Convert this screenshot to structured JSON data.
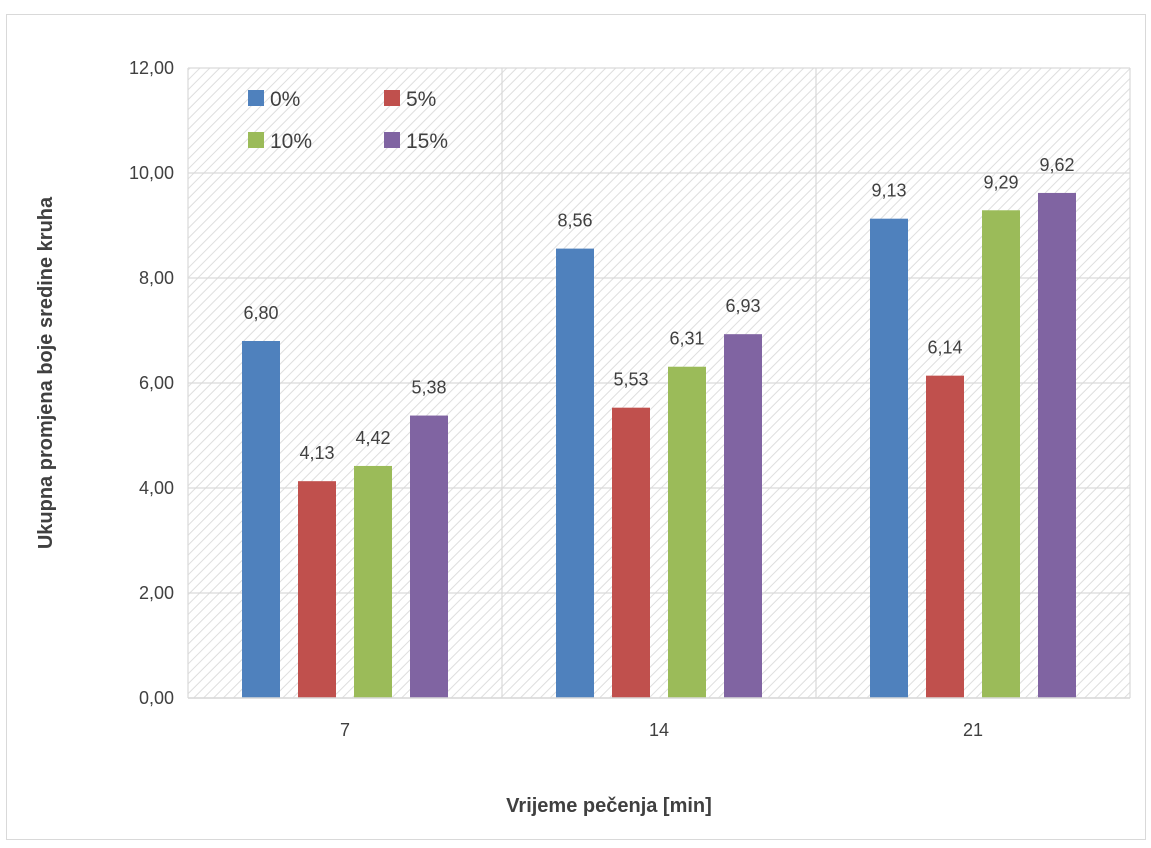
{
  "chart_data": {
    "type": "bar",
    "title": "",
    "xlabel": "Vrijeme pečenja [min]",
    "ylabel": "Ukupna promjena boje sredine kruha",
    "categories": [
      "7",
      "14",
      "21"
    ],
    "ylim": [
      0,
      12
    ],
    "yticks": [
      0,
      2,
      4,
      6,
      8,
      10,
      12
    ],
    "ytick_labels": [
      "0,00",
      "2,00",
      "4,00",
      "6,00",
      "8,00",
      "10,00",
      "12,00"
    ],
    "grid": true,
    "plot_background": "diagonal-hatch",
    "legend_position": "top-left",
    "series": [
      {
        "name": "0%",
        "color": "#4f81bd",
        "values": [
          6.8,
          8.56,
          9.13
        ],
        "labels": [
          "6,80",
          "8,56",
          "9,13"
        ]
      },
      {
        "name": "5%",
        "color": "#c0504d",
        "values": [
          4.13,
          5.53,
          6.14
        ],
        "labels": [
          "4,13",
          "5,53",
          "6,14"
        ]
      },
      {
        "name": "10%",
        "color": "#9bbb59",
        "values": [
          4.42,
          6.31,
          9.29
        ],
        "labels": [
          "4,42",
          "6,31",
          "9,29"
        ]
      },
      {
        "name": "15%",
        "color": "#8064a2",
        "values": [
          5.38,
          6.93,
          9.62
        ],
        "labels": [
          "5,38",
          "6,93",
          "9,62"
        ]
      }
    ]
  }
}
